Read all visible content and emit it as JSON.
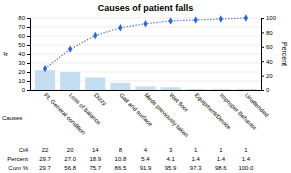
{
  "chart_data": {
    "type": "bar",
    "title": "Causes of patient falls",
    "xlabel": "Causes",
    "ylabel": "#",
    "y2label": "Percent",
    "categories": [
      "Pt. General condition",
      "Loss of balance",
      "Dizzy",
      "Gait and surface",
      "Meds previously taken",
      "Wet floor",
      "Equipment/Device",
      "Improper Behavior",
      "Unattended"
    ],
    "series": [
      {
        "type": "bar",
        "color": "#c5ddf0",
        "values": [
          22,
          20,
          14,
          8,
          4,
          3,
          1,
          1,
          1
        ]
      },
      {
        "type": "line",
        "axis": "y2",
        "color": "#3366cc",
        "marker": "diamond",
        "line_style": "dotted",
        "values": [
          29.7,
          56.8,
          75.7,
          86.5,
          91.9,
          95.9,
          97.3,
          98.6,
          100.0
        ]
      }
    ],
    "ylim": [
      0,
      80
    ],
    "yticks": [
      0,
      10,
      20,
      30,
      40,
      50,
      60,
      70,
      80
    ],
    "y2lim": [
      0,
      100
    ],
    "y2ticks": [
      0,
      20,
      40,
      60,
      80,
      100
    ],
    "grid": true,
    "table": [
      {
        "label": "Ct4",
        "values": [
          22,
          20,
          14,
          8,
          4,
          3,
          1,
          1,
          1
        ]
      },
      {
        "label": "Percent",
        "values": [
          29.7,
          27.0,
          18.9,
          10.8,
          5.4,
          4.1,
          1.4,
          1.4,
          1.4
        ],
        "value_labels": [
          "29.7",
          "27.0",
          "18.9",
          "10.8",
          "5.4",
          "4.1",
          "1.4",
          "1.4",
          "1.4"
        ]
      },
      {
        "label": "Cum %",
        "values": [
          29.7,
          56.8,
          75.7,
          86.5,
          91.9,
          95.9,
          97.3,
          98.6,
          100.0
        ],
        "value_labels": [
          "29.7",
          "56.8",
          "75.7",
          "86.5",
          "91.9",
          "95.9",
          "97.3",
          "98.6",
          "100.0"
        ]
      }
    ]
  }
}
